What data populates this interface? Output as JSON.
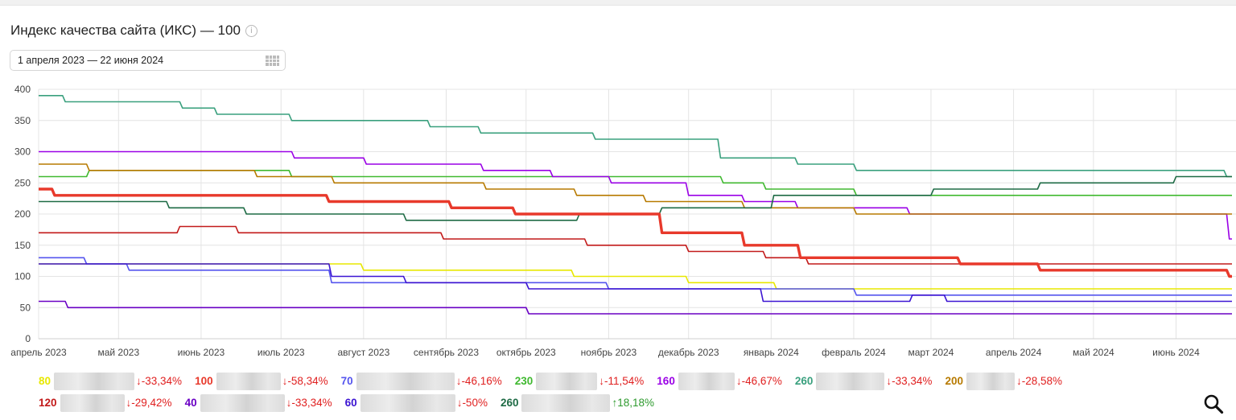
{
  "title": "Индекс качества сайта (ИКС) — 100",
  "date_range": "1 апреля 2023 — 22 июня 2024",
  "icons": [
    "info-icon",
    "calendar-icon",
    "search-icon"
  ],
  "chart_data": {
    "type": "line",
    "title": "",
    "xlabel": "",
    "ylabel": "",
    "ylim": [
      0,
      400
    ],
    "yticks": [
      "0",
      "50",
      "100",
      "150",
      "200",
      "250",
      "300",
      "350",
      "400"
    ],
    "x_tick_labels": [
      "апрель 2023",
      "май 2023",
      "июнь 2023",
      "июль 2023",
      "август 2023",
      "сентябрь 2023",
      "октябрь 2023",
      "ноябрь 2023",
      "декабрь 2023",
      "январь 2024",
      "февраль 2024",
      "март 2024",
      "апрель 2024",
      "май 2024",
      "июнь 2024"
    ],
    "xlim": [
      "2023-04-01",
      "2024-06-22"
    ],
    "grid": true,
    "series": [
      {
        "color": "#e8e800",
        "value_label": "80",
        "change": "↓-33,34%",
        "change_color": "#e02020",
        "points": [
          [
            "2023-04-01",
            120
          ],
          [
            "2023-07-31",
            120
          ],
          [
            "2023-08-01",
            110
          ],
          [
            "2023-10-18",
            110
          ],
          [
            "2023-10-19",
            100
          ],
          [
            "2023-11-30",
            100
          ],
          [
            "2023-12-01",
            90
          ],
          [
            "2024-01-02",
            90
          ],
          [
            "2024-01-03",
            80
          ],
          [
            "2024-06-22",
            80
          ]
        ]
      },
      {
        "color": "#e8392b",
        "value_label": "100",
        "change": "↓-58,34%",
        "change_color": "#e02020",
        "bold": true,
        "points": [
          [
            "2023-04-01",
            240
          ],
          [
            "2023-04-06",
            240
          ],
          [
            "2023-04-07",
            230
          ],
          [
            "2023-07-18",
            230
          ],
          [
            "2023-07-19",
            220
          ],
          [
            "2023-09-02",
            220
          ],
          [
            "2023-09-03",
            210
          ],
          [
            "2023-09-26",
            210
          ],
          [
            "2023-09-27",
            200
          ],
          [
            "2023-11-20",
            200
          ],
          [
            "2023-11-21",
            170
          ],
          [
            "2023-12-21",
            170
          ],
          [
            "2023-12-22",
            150
          ],
          [
            "2024-01-11",
            150
          ],
          [
            "2024-01-12",
            130
          ],
          [
            "2024-03-11",
            130
          ],
          [
            "2024-03-12",
            120
          ],
          [
            "2024-04-10",
            120
          ],
          [
            "2024-04-11",
            110
          ],
          [
            "2024-06-20",
            110
          ],
          [
            "2024-06-21",
            100
          ],
          [
            "2024-06-22",
            100
          ]
        ]
      },
      {
        "color": "#5555ee",
        "value_label": "70",
        "change": "↓-46,16%",
        "change_color": "#e02020",
        "points": [
          [
            "2023-04-01",
            130
          ],
          [
            "2023-04-18",
            130
          ],
          [
            "2023-04-19",
            120
          ],
          [
            "2023-05-04",
            120
          ],
          [
            "2023-05-05",
            110
          ],
          [
            "2023-07-19",
            110
          ],
          [
            "2023-07-20",
            90
          ],
          [
            "2023-10-31",
            90
          ],
          [
            "2023-11-01",
            80
          ],
          [
            "2024-02-01",
            80
          ],
          [
            "2024-02-02",
            70
          ],
          [
            "2024-06-22",
            70
          ]
        ]
      },
      {
        "color": "#40b930",
        "value_label": "230",
        "change": "↓-11,54%",
        "change_color": "#e02020",
        "points": [
          [
            "2023-04-01",
            260
          ],
          [
            "2023-04-19",
            260
          ],
          [
            "2023-04-20",
            270
          ],
          [
            "2023-07-04",
            270
          ],
          [
            "2023-07-05",
            260
          ],
          [
            "2023-12-13",
            260
          ],
          [
            "2023-12-14",
            250
          ],
          [
            "2023-12-29",
            250
          ],
          [
            "2023-12-30",
            240
          ],
          [
            "2024-02-01",
            240
          ],
          [
            "2024-02-02",
            230
          ],
          [
            "2024-06-22",
            230
          ]
        ]
      },
      {
        "color": "#9a00e6",
        "value_label": "160",
        "change": "↓-46,67%",
        "change_color": "#e02020",
        "points": [
          [
            "2023-04-01",
            300
          ],
          [
            "2023-07-05",
            300
          ],
          [
            "2023-07-06",
            290
          ],
          [
            "2023-08-01",
            290
          ],
          [
            "2023-08-02",
            280
          ],
          [
            "2023-09-14",
            280
          ],
          [
            "2023-09-15",
            270
          ],
          [
            "2023-10-10",
            270
          ],
          [
            "2023-10-11",
            260
          ],
          [
            "2023-11-01",
            260
          ],
          [
            "2023-11-02",
            250
          ],
          [
            "2023-11-30",
            250
          ],
          [
            "2023-12-01",
            230
          ],
          [
            "2023-12-21",
            230
          ],
          [
            "2023-12-22",
            220
          ],
          [
            "2024-01-10",
            220
          ],
          [
            "2024-01-11",
            210
          ],
          [
            "2024-02-21",
            210
          ],
          [
            "2024-02-22",
            200
          ],
          [
            "2024-06-20",
            200
          ],
          [
            "2024-06-21",
            160
          ],
          [
            "2024-06-22",
            160
          ]
        ]
      },
      {
        "color": "#3aa07e",
        "value_label": "260",
        "change": "↓-33,34%",
        "change_color": "#e02020",
        "points": [
          [
            "2023-04-01",
            390
          ],
          [
            "2023-04-10",
            390
          ],
          [
            "2023-04-11",
            380
          ],
          [
            "2023-05-24",
            380
          ],
          [
            "2023-05-25",
            370
          ],
          [
            "2023-06-06",
            370
          ],
          [
            "2023-06-07",
            360
          ],
          [
            "2023-07-04",
            360
          ],
          [
            "2023-07-05",
            350
          ],
          [
            "2023-08-25",
            350
          ],
          [
            "2023-08-26",
            340
          ],
          [
            "2023-09-13",
            340
          ],
          [
            "2023-09-14",
            330
          ],
          [
            "2023-10-26",
            330
          ],
          [
            "2023-10-27",
            320
          ],
          [
            "2023-12-12",
            320
          ],
          [
            "2023-12-13",
            290
          ],
          [
            "2024-01-10",
            290
          ],
          [
            "2024-01-11",
            280
          ],
          [
            "2024-02-01",
            280
          ],
          [
            "2024-02-02",
            270
          ],
          [
            "2024-06-19",
            270
          ],
          [
            "2024-06-20",
            260
          ],
          [
            "2024-06-22",
            260
          ]
        ]
      },
      {
        "color": "#b77a00",
        "value_label": "200",
        "change": "↓-28,58%",
        "change_color": "#e02020",
        "points": [
          [
            "2023-04-01",
            280
          ],
          [
            "2023-04-19",
            280
          ],
          [
            "2023-04-20",
            270
          ],
          [
            "2023-06-21",
            270
          ],
          [
            "2023-06-22",
            260
          ],
          [
            "2023-07-20",
            260
          ],
          [
            "2023-07-21",
            250
          ],
          [
            "2023-09-15",
            250
          ],
          [
            "2023-09-16",
            240
          ],
          [
            "2023-10-19",
            240
          ],
          [
            "2023-10-20",
            230
          ],
          [
            "2023-11-14",
            230
          ],
          [
            "2023-11-15",
            220
          ],
          [
            "2023-12-21",
            220
          ],
          [
            "2023-12-22",
            210
          ],
          [
            "2024-02-01",
            210
          ],
          [
            "2024-02-02",
            200
          ],
          [
            "2024-06-22",
            200
          ]
        ]
      },
      {
        "color": "#c21a1a",
        "value_label": "120",
        "change": "↓-29,42%",
        "change_color": "#e02020",
        "points": [
          [
            "2023-04-01",
            170
          ],
          [
            "2023-05-23",
            170
          ],
          [
            "2023-05-24",
            180
          ],
          [
            "2023-06-14",
            180
          ],
          [
            "2023-06-15",
            170
          ],
          [
            "2023-08-30",
            170
          ],
          [
            "2023-08-31",
            160
          ],
          [
            "2023-10-23",
            160
          ],
          [
            "2023-10-24",
            150
          ],
          [
            "2023-11-30",
            150
          ],
          [
            "2023-12-01",
            140
          ],
          [
            "2023-12-29",
            140
          ],
          [
            "2023-12-30",
            130
          ],
          [
            "2024-01-14",
            130
          ],
          [
            "2024-01-15",
            120
          ],
          [
            "2024-06-22",
            120
          ]
        ]
      },
      {
        "color": "#6a00c4",
        "value_label": "40",
        "change": "↓-33,34%",
        "change_color": "#e02020",
        "points": [
          [
            "2023-04-01",
            60
          ],
          [
            "2023-04-11",
            60
          ],
          [
            "2023-04-12",
            50
          ],
          [
            "2023-10-01",
            50
          ],
          [
            "2023-10-02",
            40
          ],
          [
            "2024-06-22",
            40
          ]
        ]
      },
      {
        "color": "#3c14d2",
        "value_label": "60",
        "change": "↓-50%",
        "change_color": "#e02020",
        "points": [
          [
            "2023-04-01",
            120
          ],
          [
            "2023-07-19",
            120
          ],
          [
            "2023-07-20",
            100
          ],
          [
            "2023-08-16",
            100
          ],
          [
            "2023-08-17",
            90
          ],
          [
            "2023-10-01",
            90
          ],
          [
            "2023-10-02",
            80
          ],
          [
            "2023-12-28",
            80
          ],
          [
            "2023-12-29",
            60
          ],
          [
            "2024-02-22",
            60
          ],
          [
            "2024-02-23",
            70
          ],
          [
            "2024-03-06",
            70
          ],
          [
            "2024-03-07",
            60
          ],
          [
            "2024-06-22",
            60
          ]
        ]
      },
      {
        "color": "#1e6b45",
        "value_label": "260",
        "change": "↑18,18%",
        "change_color": "#2e9a2e",
        "points": [
          [
            "2023-04-01",
            220
          ],
          [
            "2023-05-19",
            220
          ],
          [
            "2023-05-20",
            210
          ],
          [
            "2023-06-17",
            210
          ],
          [
            "2023-06-18",
            200
          ],
          [
            "2023-08-16",
            200
          ],
          [
            "2023-08-17",
            190
          ],
          [
            "2023-10-20",
            190
          ],
          [
            "2023-10-21",
            200
          ],
          [
            "2023-11-20",
            200
          ],
          [
            "2023-11-21",
            210
          ],
          [
            "2024-01-01",
            210
          ],
          [
            "2024-01-02",
            230
          ],
          [
            "2024-03-01",
            230
          ],
          [
            "2024-03-02",
            240
          ],
          [
            "2024-04-10",
            240
          ],
          [
            "2024-04-11",
            250
          ],
          [
            "2024-05-31",
            250
          ],
          [
            "2024-06-01",
            260
          ],
          [
            "2024-06-22",
            260
          ]
        ]
      }
    ]
  },
  "legend_rows": [
    [
      {
        "value": "80",
        "color": "#e8e800",
        "change": "↓-33,34%",
        "change_color": "#e02020"
      },
      {
        "value": "100",
        "color": "#e8392b",
        "change": "↓-58,34%",
        "change_color": "#e02020"
      },
      {
        "value": "70",
        "color": "#5555ee",
        "change": "↓-46,16%",
        "change_color": "#e02020"
      },
      {
        "value": "230",
        "color": "#40b930",
        "change": "↓-11,54%",
        "change_color": "#e02020"
      },
      {
        "value": "160",
        "color": "#9a00e6",
        "change": "↓-46,67%",
        "change_color": "#e02020"
      },
      {
        "value": "260",
        "color": "#3aa07e",
        "change": "↓-33,34%",
        "change_color": "#e02020"
      },
      {
        "value": "200",
        "color": "#b77a00",
        "change": "↓-28,58%",
        "change_color": "#e02020"
      }
    ],
    [
      {
        "value": "120",
        "color": "#c21a1a",
        "change": "↓-29,42%",
        "change_color": "#e02020"
      },
      {
        "value": "40",
        "color": "#6a00c4",
        "change": "↓-33,34%",
        "change_color": "#e02020"
      },
      {
        "value": "60",
        "color": "#3c14d2",
        "change": "↓-50%",
        "change_color": "#e02020"
      },
      {
        "value": "260",
        "color": "#1e6b45",
        "change": "↑18,18%",
        "change_color": "#2e9a2e"
      }
    ]
  ]
}
